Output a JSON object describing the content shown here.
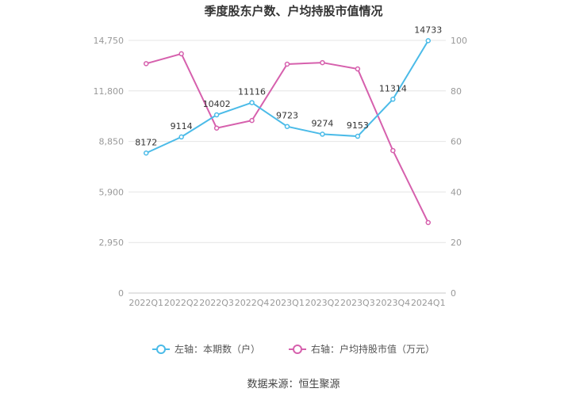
{
  "title": "季度股东户数、户均持股市值情况",
  "source": "数据来源：恒生聚源",
  "colors": {
    "left_series": "#4bbbe8",
    "right_series": "#d660ad",
    "grid": "#e4e4e4",
    "axis_text": "#999999"
  },
  "chart_data": {
    "type": "line",
    "categories": [
      "2022Q1",
      "2022Q2",
      "2022Q3",
      "2022Q4",
      "2023Q1",
      "2023Q2",
      "2023Q3",
      "2023Q4",
      "2024Q1"
    ],
    "y_left": {
      "ticks": [
        "0",
        "2,950",
        "5,900",
        "8,850",
        "11,800",
        "14,750"
      ],
      "ylim": [
        0,
        14750
      ]
    },
    "y_right": {
      "ticks": [
        "0",
        "20",
        "40",
        "60",
        "80",
        "100"
      ],
      "ylim": [
        0,
        100
      ]
    },
    "grid": true,
    "legend_position": "bottom",
    "series": [
      {
        "name": "左轴：本期数（户）",
        "axis": "left",
        "values": [
          8172,
          9114,
          10402,
          11116,
          9723,
          9274,
          9153,
          11314,
          14733
        ],
        "labels": [
          "8172",
          "9114",
          "10402",
          "11116",
          "9723",
          "9274",
          "9153",
          "11314",
          "14733"
        ]
      },
      {
        "name": "右轴：户均持股市值（万元）",
        "axis": "right",
        "values": [
          90.8,
          94.7,
          65.3,
          68.3,
          90.6,
          91.2,
          88.7,
          56.4,
          27.9
        ]
      }
    ]
  }
}
